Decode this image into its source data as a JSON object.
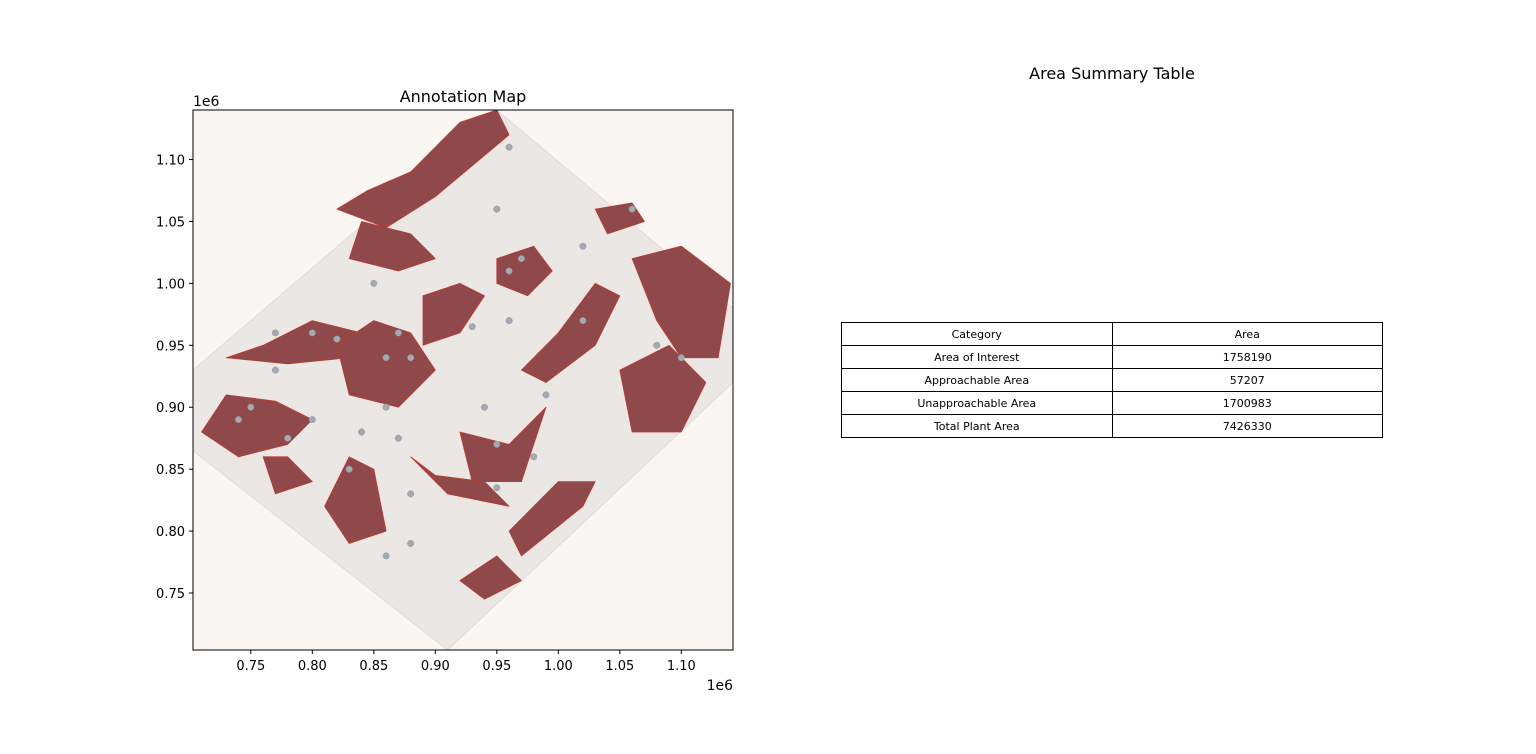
{
  "chart_data": [
    {
      "type": "map",
      "title": "Annotation Map",
      "xlabel": "",
      "ylabel": "",
      "x_offset_label": "1e6",
      "y_offset_label": "1e6",
      "xlim": [
        0.703,
        1.142
      ],
      "ylim": [
        0.704,
        1.14
      ],
      "x_ticks": [
        0.75,
        0.8,
        0.85,
        0.9,
        0.95,
        1.0,
        1.05,
        1.1
      ],
      "x_tick_labels": [
        "0.75",
        "0.80",
        "0.85",
        "0.90",
        "0.95",
        "1.00",
        "1.05",
        "1.10"
      ],
      "y_ticks": [
        0.75,
        0.8,
        0.85,
        0.9,
        0.95,
        1.0,
        1.05,
        1.1
      ],
      "y_tick_labels": [
        "0.75",
        "0.80",
        "0.85",
        "0.90",
        "0.95",
        "1.00",
        "1.05",
        "1.10"
      ],
      "background_color": "#faf6f3",
      "terrain_color": "#ebe7e4",
      "plant_area_color": "#8b4a4d",
      "plant_edge_color": "#c0392b",
      "unapproachable_color": "#a3aab3",
      "footprint": [
        [
          0.703,
          0.93
        ],
        [
          0.95,
          1.14
        ],
        [
          1.142,
          0.98
        ],
        [
          1.142,
          0.92
        ],
        [
          0.91,
          0.704
        ],
        [
          0.703,
          0.865
        ]
      ],
      "plant_regions": [
        [
          [
            0.82,
            1.06
          ],
          [
            0.86,
            1.045
          ],
          [
            0.9,
            1.07
          ],
          [
            0.96,
            1.12
          ],
          [
            0.95,
            1.14
          ],
          [
            0.92,
            1.13
          ],
          [
            0.88,
            1.09
          ],
          [
            0.845,
            1.075
          ]
        ],
        [
          [
            0.84,
            1.05
          ],
          [
            0.88,
            1.04
          ],
          [
            0.9,
            1.02
          ],
          [
            0.87,
            1.01
          ],
          [
            0.83,
            1.02
          ]
        ],
        [
          [
            0.76,
            0.95
          ],
          [
            0.8,
            0.97
          ],
          [
            0.84,
            0.96
          ],
          [
            0.83,
            0.94
          ],
          [
            0.78,
            0.935
          ],
          [
            0.73,
            0.94
          ]
        ],
        [
          [
            0.73,
            0.91
          ],
          [
            0.77,
            0.905
          ],
          [
            0.8,
            0.89
          ],
          [
            0.78,
            0.87
          ],
          [
            0.74,
            0.86
          ],
          [
            0.71,
            0.88
          ]
        ],
        [
          [
            0.82,
            0.95
          ],
          [
            0.85,
            0.97
          ],
          [
            0.88,
            0.96
          ],
          [
            0.9,
            0.93
          ],
          [
            0.87,
            0.9
          ],
          [
            0.83,
            0.91
          ]
        ],
        [
          [
            0.89,
            0.99
          ],
          [
            0.92,
            1.0
          ],
          [
            0.94,
            0.99
          ],
          [
            0.92,
            0.96
          ],
          [
            0.89,
            0.95
          ]
        ],
        [
          [
            0.95,
            1.02
          ],
          [
            0.98,
            1.03
          ],
          [
            0.995,
            1.01
          ],
          [
            0.975,
            0.99
          ],
          [
            0.95,
            1.0
          ]
        ],
        [
          [
            0.97,
            0.93
          ],
          [
            1.0,
            0.96
          ],
          [
            1.03,
            1.0
          ],
          [
            1.05,
            0.99
          ],
          [
            1.03,
            0.95
          ],
          [
            0.99,
            0.92
          ]
        ],
        [
          [
            1.06,
            1.02
          ],
          [
            1.1,
            1.03
          ],
          [
            1.14,
            1.0
          ],
          [
            1.13,
            0.94
          ],
          [
            1.1,
            0.94
          ],
          [
            1.08,
            0.97
          ]
        ],
        [
          [
            1.05,
            0.93
          ],
          [
            1.09,
            0.95
          ],
          [
            1.12,
            0.92
          ],
          [
            1.1,
            0.88
          ],
          [
            1.06,
            0.88
          ]
        ],
        [
          [
            0.92,
            0.88
          ],
          [
            0.96,
            0.87
          ],
          [
            0.99,
            0.9
          ],
          [
            0.97,
            0.84
          ],
          [
            0.93,
            0.84
          ]
        ],
        [
          [
            0.88,
            0.86
          ],
          [
            0.91,
            0.83
          ],
          [
            0.96,
            0.82
          ],
          [
            0.94,
            0.84
          ],
          [
            0.9,
            0.845
          ]
        ],
        [
          [
            0.96,
            0.8
          ],
          [
            1.0,
            0.84
          ],
          [
            1.03,
            0.84
          ],
          [
            1.02,
            0.82
          ],
          [
            0.97,
            0.78
          ]
        ],
        [
          [
            0.92,
            0.76
          ],
          [
            0.95,
            0.78
          ],
          [
            0.97,
            0.76
          ],
          [
            0.94,
            0.745
          ]
        ],
        [
          [
            0.83,
            0.86
          ],
          [
            0.85,
            0.85
          ],
          [
            0.86,
            0.8
          ],
          [
            0.83,
            0.79
          ],
          [
            0.81,
            0.82
          ]
        ],
        [
          [
            0.76,
            0.86
          ],
          [
            0.78,
            0.86
          ],
          [
            0.8,
            0.84
          ],
          [
            0.77,
            0.83
          ]
        ],
        [
          [
            1.03,
            1.06
          ],
          [
            1.06,
            1.065
          ],
          [
            1.07,
            1.05
          ],
          [
            1.04,
            1.04
          ]
        ]
      ],
      "unapproachable_points": [
        [
          0.96,
          1.11
        ],
        [
          0.95,
          1.06
        ],
        [
          0.96,
          1.01
        ],
        [
          0.97,
          1.02
        ],
        [
          1.02,
          1.03
        ],
        [
          1.06,
          1.06
        ],
        [
          0.8,
          0.96
        ],
        [
          0.77,
          0.96
        ],
        [
          0.82,
          0.955
        ],
        [
          0.85,
          1.0
        ],
        [
          0.87,
          0.96
        ],
        [
          0.86,
          0.94
        ],
        [
          0.88,
          0.94
        ],
        [
          0.93,
          0.965
        ],
        [
          0.96,
          0.97
        ],
        [
          0.99,
          0.91
        ],
        [
          0.74,
          0.89
        ],
        [
          0.75,
          0.9
        ],
        [
          0.78,
          0.875
        ],
        [
          0.84,
          0.88
        ],
        [
          0.87,
          0.875
        ],
        [
          0.83,
          0.85
        ],
        [
          0.86,
          0.9
        ],
        [
          0.88,
          0.83
        ],
        [
          0.94,
          0.9
        ],
        [
          0.95,
          0.87
        ],
        [
          0.95,
          0.835
        ],
        [
          0.98,
          0.86
        ],
        [
          1.08,
          0.95
        ],
        [
          1.1,
          0.94
        ],
        [
          1.02,
          0.97
        ],
        [
          0.88,
          0.79
        ],
        [
          0.86,
          0.78
        ],
        [
          0.8,
          0.89
        ],
        [
          0.77,
          0.93
        ]
      ]
    },
    {
      "type": "table",
      "title": "Area Summary Table",
      "columns": [
        "Category",
        "Area"
      ],
      "rows": [
        [
          "Area of Interest",
          "1758190"
        ],
        [
          "Approachable Area",
          "57207"
        ],
        [
          "Unapproachable Area",
          "1700983"
        ],
        [
          "Total Plant Area",
          "7426330"
        ]
      ]
    }
  ]
}
